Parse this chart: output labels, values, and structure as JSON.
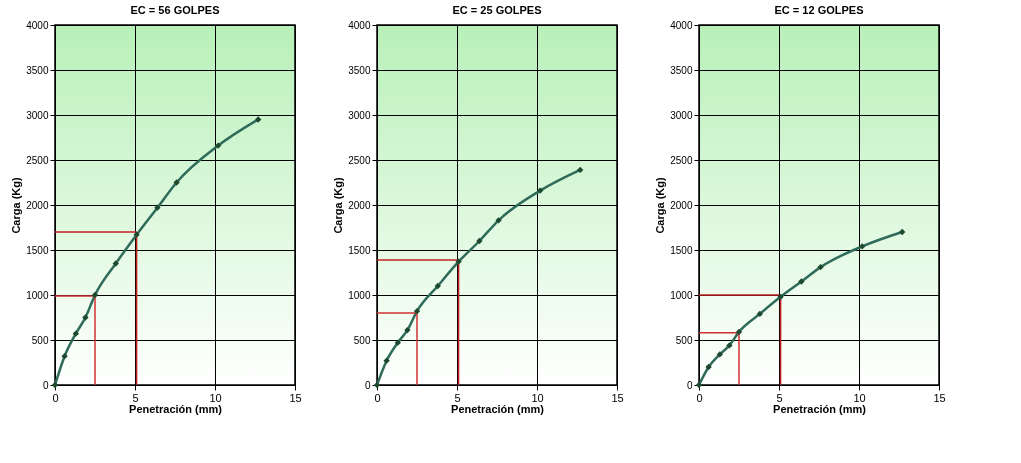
{
  "chart_data": [
    {
      "type": "line",
      "title": "EC = 56 GOLPES",
      "xlabel": "Penetración (mm)",
      "ylabel": "Carga (Kg)",
      "xlim": [
        0,
        15
      ],
      "xticks": [
        0,
        5,
        10,
        15
      ],
      "ylim": [
        0,
        4000
      ],
      "yticks": [
        0,
        500,
        1000,
        1500,
        2000,
        2500,
        3000,
        3500,
        4000
      ],
      "grid": true,
      "marker": "diamond",
      "line_style": "solid",
      "x": [
        0,
        0.6,
        1.3,
        1.9,
        2.5,
        3.8,
        5.1,
        6.4,
        7.6,
        10.2,
        12.7
      ],
      "series": [
        {
          "color": "#2f6b5a",
          "values": [
            0,
            320,
            570,
            750,
            1000,
            1350,
            1670,
            1970,
            2250,
            2660,
            2950
          ]
        }
      ],
      "ref_lines": [
        {
          "axis": "x",
          "value": 2.5,
          "color": "#d03030"
        },
        {
          "axis": "x",
          "value": 5.1,
          "color": "#c02020"
        },
        {
          "axis": "y",
          "value": 990,
          "color": "#d03030"
        },
        {
          "axis": "y",
          "value": 1700,
          "color": "#c02020"
        }
      ]
    },
    {
      "type": "line",
      "title": "EC = 25 GOLPES",
      "xlabel": "Penetración (mm)",
      "ylabel": "Carga (Kg)",
      "xlim": [
        0,
        15
      ],
      "xticks": [
        0,
        5,
        10,
        15
      ],
      "ylim": [
        0,
        4000
      ],
      "yticks": [
        0,
        500,
        1000,
        1500,
        2000,
        2500,
        3000,
        3500,
        4000
      ],
      "grid": true,
      "marker": "diamond",
      "line_style": "solid",
      "x": [
        0,
        0.6,
        1.3,
        1.9,
        2.5,
        3.8,
        5.1,
        6.4,
        7.6,
        10.2,
        12.7
      ],
      "series": [
        {
          "color": "#2f6b5a",
          "values": [
            0,
            270,
            470,
            610,
            820,
            1100,
            1370,
            1600,
            1830,
            2160,
            2390
          ]
        }
      ],
      "ref_lines": [
        {
          "axis": "x",
          "value": 2.5,
          "color": "#d03030"
        },
        {
          "axis": "x",
          "value": 5.1,
          "color": "#c02020"
        },
        {
          "axis": "y",
          "value": 800,
          "color": "#d03030"
        },
        {
          "axis": "y",
          "value": 1390,
          "color": "#c02020"
        }
      ]
    },
    {
      "type": "line",
      "title": "EC = 12 GOLPES",
      "xlabel": "Penetración (mm)",
      "ylabel": "Carga (Kg)",
      "xlim": [
        0,
        15
      ],
      "xticks": [
        0,
        5,
        10,
        15
      ],
      "ylim": [
        0,
        4000
      ],
      "yticks": [
        0,
        500,
        1000,
        1500,
        2000,
        2500,
        3000,
        3500,
        4000
      ],
      "grid": true,
      "marker": "diamond",
      "line_style": "solid",
      "x": [
        0,
        0.6,
        1.3,
        1.9,
        2.5,
        3.8,
        5.1,
        6.4,
        7.6,
        10.2,
        12.7
      ],
      "series": [
        {
          "color": "#2f6b5a",
          "values": [
            0,
            200,
            340,
            440,
            590,
            790,
            980,
            1150,
            1310,
            1540,
            1700
          ]
        }
      ],
      "ref_lines": [
        {
          "axis": "x",
          "value": 2.5,
          "color": "#d03030"
        },
        {
          "axis": "x",
          "value": 5.1,
          "color": "#c02020"
        },
        {
          "axis": "y",
          "value": 580,
          "color": "#d03030"
        },
        {
          "axis": "y",
          "value": 1000,
          "color": "#c02020"
        }
      ]
    }
  ]
}
